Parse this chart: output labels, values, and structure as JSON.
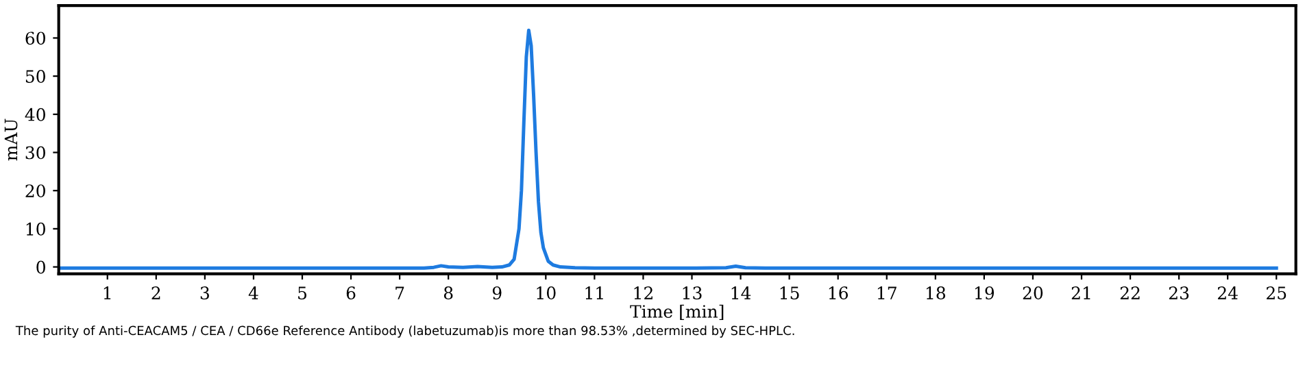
{
  "chart_data": {
    "type": "line",
    "xlabel": "Time [min]",
    "ylabel": "mAU",
    "annotations": [
      "The purity of Anti-CEACAM5 / CEA / CD66e Reference Antibody (labetuzumab)is more than 98.53% ,determined by SEC-HPLC."
    ],
    "xlim": [
      0,
      25.4
    ],
    "ylim": [
      -1.8,
      68.5
    ],
    "xticks": [
      1,
      2,
      3,
      4,
      5,
      6,
      7,
      8,
      9,
      10,
      11,
      12,
      13,
      14,
      15,
      16,
      17,
      18,
      19,
      20,
      21,
      22,
      23,
      24,
      25
    ],
    "yticks": [
      0,
      10,
      20,
      30,
      40,
      50,
      60
    ],
    "grid": false,
    "legend": false,
    "series": [
      {
        "color": "#1e7be0",
        "x": [
          0,
          2,
          4,
          6,
          7.5,
          7.7,
          7.85,
          8.0,
          8.3,
          8.6,
          8.9,
          9.1,
          9.25,
          9.35,
          9.45,
          9.5,
          9.55,
          9.6,
          9.65,
          9.7,
          9.75,
          9.8,
          9.85,
          9.9,
          9.95,
          10.05,
          10.15,
          10.3,
          10.6,
          11,
          12,
          13,
          13.7,
          13.9,
          14.1,
          14.5,
          16,
          18,
          20,
          22,
          24,
          25
        ],
        "values": [
          -0.3,
          -0.3,
          -0.3,
          -0.3,
          -0.3,
          -0.1,
          0.3,
          0.0,
          -0.1,
          0.1,
          -0.1,
          0.0,
          0.5,
          2,
          10,
          20,
          38,
          55,
          62,
          58,
          45,
          30,
          17,
          9,
          5,
          1.5,
          0.5,
          0,
          -0.2,
          -0.3,
          -0.3,
          -0.3,
          -0.2,
          0.2,
          -0.2,
          -0.3,
          -0.3,
          -0.3,
          -0.3,
          -0.3,
          -0.3,
          -0.3
        ]
      }
    ]
  }
}
